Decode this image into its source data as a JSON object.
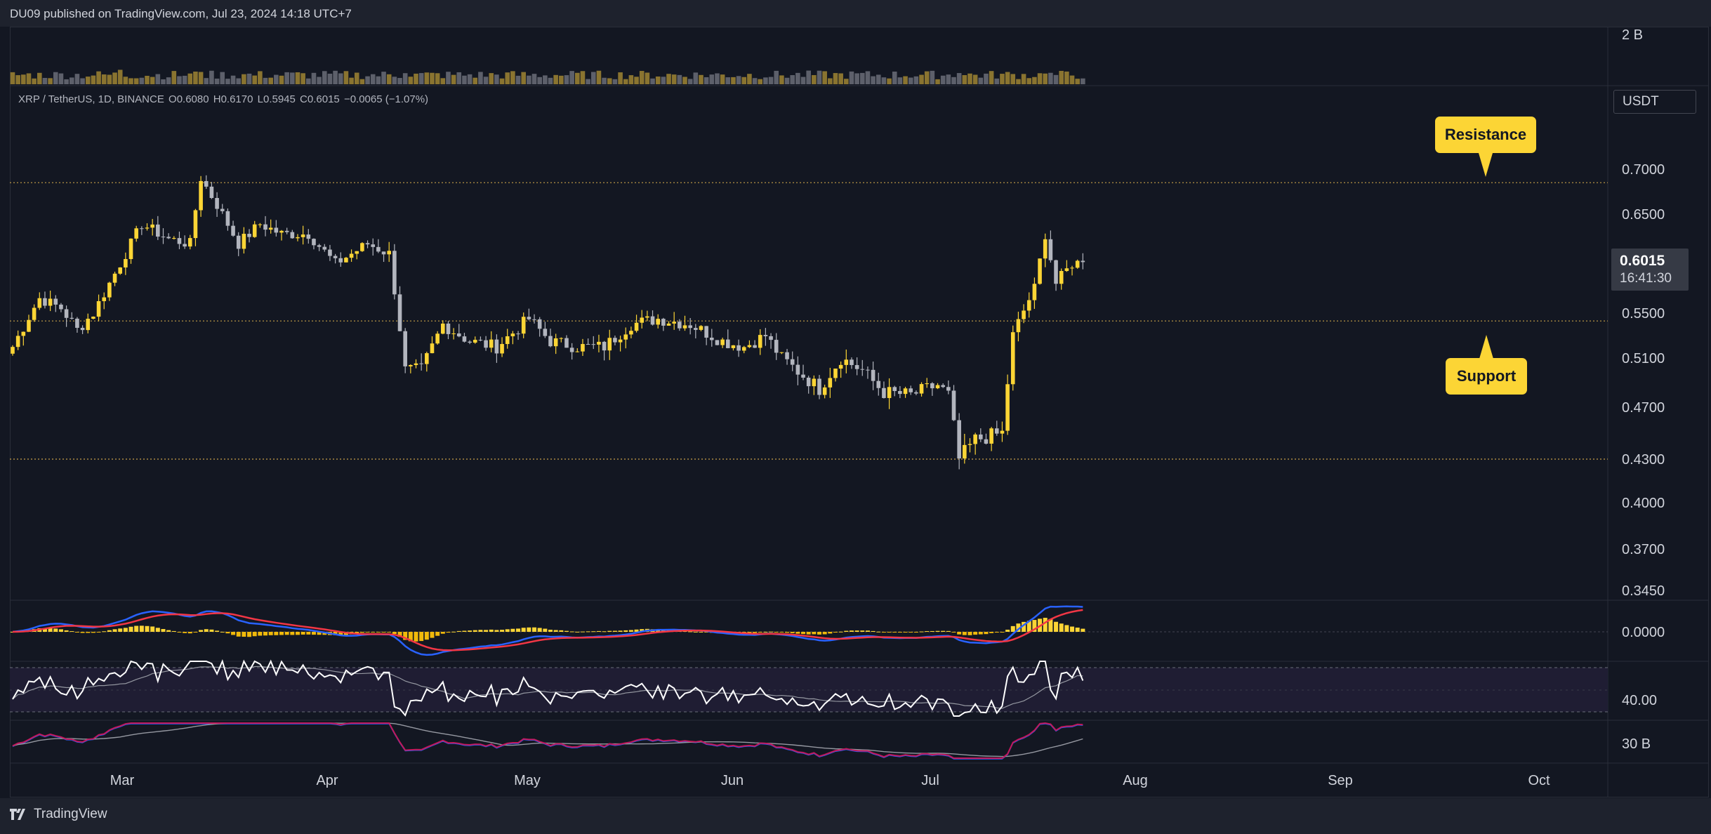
{
  "header": {
    "publish_note": "DU09 published on TradingView.com, Jul 23, 2024 14:18 UTC+7"
  },
  "footer": {
    "brand": "TradingView"
  },
  "legend": {
    "symbol": "XRP / TetherUS, 1D, BINANCE",
    "open": "O0.6080",
    "high": "H0.6170",
    "low": "L0.5945",
    "close": "C0.6015",
    "change": "−0.0065 (−1.07%)"
  },
  "currency": "USDT",
  "price_badge": {
    "price": "0.6015",
    "countdown": "16:41:30"
  },
  "annotations": {
    "resistance": "Resistance",
    "support": "Support"
  },
  "colors": {
    "up": "#fcd535",
    "down": "#b2b5be",
    "background": "#131722",
    "macd": "#2962ff",
    "signal": "#f23645",
    "rsi": "#ffffff"
  },
  "chart_data": {
    "type": "candlestick",
    "instrument": "XRP / TetherUS",
    "interval": "1D",
    "exchange": "BINANCE",
    "y_ticks": [
      "0.7000",
      "0.6500",
      "0.5500",
      "0.5100",
      "0.4700",
      "0.4300",
      "0.4000",
      "0.3700",
      "0.3450"
    ],
    "ylim": [
      0.345,
      0.72
    ],
    "x_ticks": [
      "Mar",
      "Apr",
      "May",
      "Jun",
      "Jul",
      "Aug",
      "Sep",
      "Oct"
    ],
    "levels": [
      {
        "price": 0.685,
        "label": "Resistance"
      },
      {
        "price": 0.543
      },
      {
        "price": 0.43
      }
    ],
    "last_close": 0.6015,
    "anchors": [
      [
        0,
        0.52
      ],
      [
        5,
        0.565
      ],
      [
        9,
        0.555
      ],
      [
        12,
        0.535
      ],
      [
        15,
        0.55
      ],
      [
        19,
        0.59
      ],
      [
        24,
        0.64
      ],
      [
        29,
        0.625
      ],
      [
        33,
        0.62
      ],
      [
        35,
        0.69
      ],
      [
        38,
        0.66
      ],
      [
        42,
        0.62
      ],
      [
        46,
        0.64
      ],
      [
        50,
        0.63
      ],
      [
        55,
        0.63
      ],
      [
        60,
        0.6
      ],
      [
        66,
        0.62
      ],
      [
        70,
        0.61
      ],
      [
        73,
        0.5
      ],
      [
        76,
        0.5
      ],
      [
        80,
        0.54
      ],
      [
        85,
        0.525
      ],
      [
        90,
        0.52
      ],
      [
        96,
        0.545
      ],
      [
        100,
        0.525
      ],
      [
        105,
        0.52
      ],
      [
        110,
        0.52
      ],
      [
        115,
        0.54
      ],
      [
        120,
        0.545
      ],
      [
        126,
        0.54
      ],
      [
        132,
        0.525
      ],
      [
        136,
        0.52
      ],
      [
        140,
        0.53
      ],
      [
        143,
        0.51
      ],
      [
        150,
        0.485
      ],
      [
        154,
        0.51
      ],
      [
        158,
        0.5
      ],
      [
        162,
        0.482
      ],
      [
        167,
        0.48
      ],
      [
        172,
        0.488
      ],
      [
        174,
        0.48
      ],
      [
        176,
        0.43
      ],
      [
        179,
        0.445
      ],
      [
        184,
        0.45
      ],
      [
        186,
        0.53
      ],
      [
        190,
        0.575
      ],
      [
        192,
        0.63
      ],
      [
        194,
        0.58
      ],
      [
        197,
        0.6
      ],
      [
        199,
        0.6015
      ]
    ],
    "indicators": {
      "volume": {
        "axis_label": "2 B"
      },
      "macd": {
        "axis_label": "0.0000"
      },
      "rsi": {
        "axis_label": "40.00"
      },
      "obv": {
        "axis_label": "30 B"
      }
    }
  }
}
